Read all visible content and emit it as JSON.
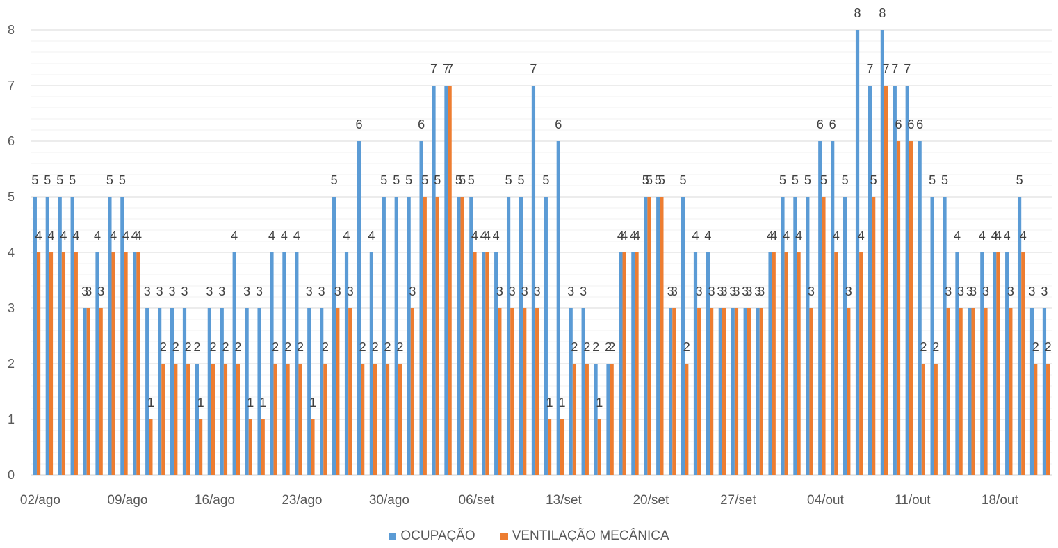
{
  "chart_data": {
    "type": "bar",
    "title": "",
    "xlabel": "",
    "ylabel": "",
    "ylim": [
      0,
      8
    ],
    "yticks": [
      0,
      1,
      2,
      3,
      4,
      5,
      6,
      7,
      8
    ],
    "grid": true,
    "minor_grid": true,
    "legend_position": "bottom",
    "colors": {
      "OCUPAÇÃO": "#5B9BD5",
      "VENTILAÇÃO MECÂNICA": "#ED7D31"
    },
    "x_tick_labels": [
      "02/ago",
      "09/ago",
      "16/ago",
      "23/ago",
      "30/ago",
      "06/set",
      "13/set",
      "20/set",
      "27/set",
      "04/out",
      "11/out",
      "18/out"
    ],
    "categories": [
      "02/ago",
      "03/ago",
      "04/ago",
      "05/ago",
      "06/ago",
      "07/ago",
      "08/ago",
      "09/ago",
      "10/ago",
      "11/ago",
      "12/ago",
      "13/ago",
      "14/ago",
      "15/ago",
      "16/ago",
      "17/ago",
      "18/ago",
      "19/ago",
      "20/ago",
      "21/ago",
      "22/ago",
      "23/ago",
      "24/ago",
      "25/ago",
      "26/ago",
      "27/ago",
      "28/ago",
      "29/ago",
      "30/ago",
      "31/ago",
      "01/set",
      "02/set",
      "03/set",
      "04/set",
      "05/set",
      "06/set",
      "07/set",
      "08/set",
      "09/set",
      "10/set",
      "11/set",
      "12/set",
      "13/set",
      "14/set",
      "15/set",
      "16/set",
      "17/set",
      "18/set",
      "19/set",
      "20/set",
      "21/set",
      "22/set",
      "23/set",
      "24/set",
      "25/set",
      "26/set",
      "27/set",
      "28/set",
      "29/set",
      "30/set",
      "01/out",
      "02/out",
      "03/out",
      "04/out",
      "05/out",
      "06/out",
      "07/out",
      "08/out",
      "09/out",
      "10/out",
      "11/out",
      "12/out",
      "13/out",
      "14/out",
      "15/out",
      "16/out",
      "17/out",
      "18/out",
      "19/out",
      "20/out",
      "21/out",
      "22/out"
    ],
    "series": [
      {
        "name": "OCUPAÇÃO",
        "values": [
          5,
          5,
          5,
          5,
          3,
          4,
          5,
          5,
          4,
          3,
          3,
          3,
          3,
          2,
          3,
          3,
          4,
          3,
          3,
          4,
          4,
          4,
          3,
          3,
          5,
          4,
          6,
          4,
          5,
          5,
          5,
          6,
          7,
          7,
          5,
          5,
          4,
          4,
          5,
          5,
          7,
          5,
          6,
          3,
          3,
          2,
          2,
          4,
          4,
          5,
          5,
          3,
          5,
          4,
          4,
          3,
          3,
          3,
          3,
          4,
          5,
          5,
          5,
          6,
          6,
          5,
          8,
          7,
          8,
          7,
          7,
          6,
          5,
          5,
          4,
          3,
          4,
          4,
          4,
          5,
          3,
          3
        ]
      },
      {
        "name": "VENTILAÇÃO MECÂNICA",
        "values": [
          4,
          4,
          4,
          4,
          3,
          3,
          4,
          4,
          4,
          1,
          2,
          2,
          2,
          1,
          2,
          2,
          2,
          1,
          1,
          2,
          2,
          2,
          1,
          2,
          3,
          3,
          2,
          2,
          2,
          2,
          3,
          5,
          5,
          7,
          5,
          4,
          4,
          3,
          3,
          3,
          3,
          1,
          1,
          2,
          2,
          1,
          2,
          4,
          4,
          5,
          5,
          3,
          2,
          3,
          3,
          3,
          3,
          3,
          3,
          4,
          4,
          4,
          3,
          5,
          4,
          3,
          4,
          5,
          7,
          6,
          6,
          2,
          2,
          3,
          3,
          3,
          3,
          4,
          3,
          4,
          2,
          2
        ]
      }
    ]
  }
}
